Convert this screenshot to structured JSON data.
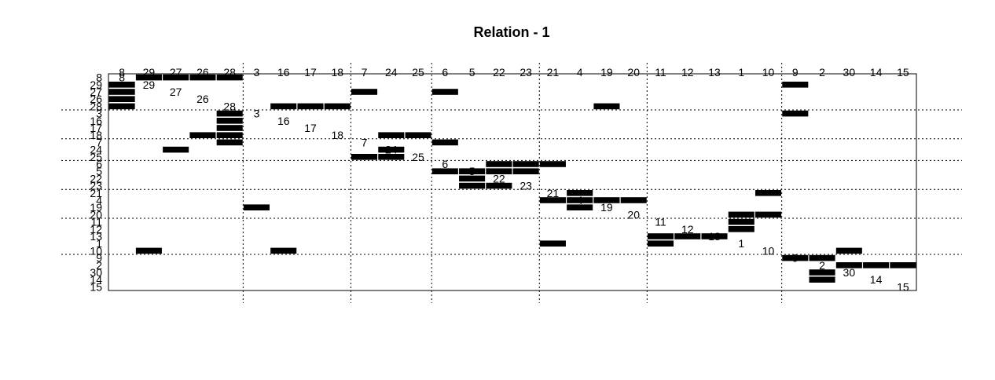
{
  "chart_data": {
    "type": "heatmap",
    "title": "Relation -  1",
    "column_labels": [
      "8",
      "29",
      "27",
      "26",
      "28",
      "3",
      "16",
      "17",
      "18",
      "7",
      "24",
      "25",
      "6",
      "5",
      "22",
      "23",
      "21",
      "4",
      "19",
      "20",
      "11",
      "12",
      "13",
      "1",
      "10",
      "9",
      "2",
      "30",
      "14",
      "15"
    ],
    "row_labels": [
      "8",
      "29",
      "27",
      "26",
      "28",
      "3",
      "16",
      "17",
      "18",
      "7",
      "24",
      "25",
      "6",
      "5",
      "22",
      "23",
      "21",
      "4",
      "19",
      "20",
      "11",
      "12",
      "13",
      "1",
      "10",
      "9",
      "2",
      "30",
      "14",
      "15"
    ],
    "diagonal_labels": [
      "8",
      "29",
      "27",
      "26",
      "28",
      "3",
      "16",
      "17",
      "18",
      "7",
      "24",
      "25",
      "6",
      "5",
      "22",
      "23",
      "21",
      "4",
      "19",
      "20",
      "11",
      "12",
      "13",
      "1",
      "10",
      "9",
      "2",
      "30",
      "14",
      "15"
    ],
    "cluster_boundaries_after": [
      5,
      9,
      12,
      16,
      20,
      25
    ],
    "ties": [
      [
        0,
        1
      ],
      [
        0,
        2
      ],
      [
        0,
        3
      ],
      [
        0,
        4
      ],
      [
        1,
        0
      ],
      [
        2,
        0
      ],
      [
        3,
        0
      ],
      [
        4,
        0
      ],
      [
        1,
        25
      ],
      [
        2,
        9
      ],
      [
        2,
        12
      ],
      [
        4,
        6
      ],
      [
        4,
        7
      ],
      [
        4,
        8
      ],
      [
        4,
        18
      ],
      [
        5,
        4
      ],
      [
        5,
        25
      ],
      [
        6,
        4
      ],
      [
        7,
        4
      ],
      [
        8,
        4
      ],
      [
        8,
        3
      ],
      [
        8,
        10
      ],
      [
        8,
        11
      ],
      [
        9,
        4
      ],
      [
        9,
        12
      ],
      [
        10,
        2
      ],
      [
        10,
        10
      ],
      [
        11,
        9
      ],
      [
        11,
        10
      ],
      [
        12,
        14
      ],
      [
        12,
        15
      ],
      [
        12,
        16
      ],
      [
        13,
        12
      ],
      [
        13,
        13
      ],
      [
        13,
        14
      ],
      [
        13,
        15
      ],
      [
        14,
        13
      ],
      [
        15,
        13
      ],
      [
        15,
        14
      ],
      [
        16,
        17
      ],
      [
        16,
        24
      ],
      [
        17,
        16
      ],
      [
        17,
        17
      ],
      [
        17,
        18
      ],
      [
        17,
        19
      ],
      [
        18,
        5
      ],
      [
        18,
        17
      ],
      [
        19,
        23
      ],
      [
        19,
        24
      ],
      [
        20,
        23
      ],
      [
        21,
        23
      ],
      [
        22,
        20
      ],
      [
        22,
        21
      ],
      [
        22,
        22
      ],
      [
        23,
        16
      ],
      [
        23,
        20
      ],
      [
        24,
        1
      ],
      [
        24,
        6
      ],
      [
        24,
        27
      ],
      [
        25,
        25
      ],
      [
        25,
        26
      ],
      [
        26,
        27
      ],
      [
        26,
        28
      ],
      [
        26,
        29
      ],
      [
        27,
        26
      ],
      [
        28,
        26
      ]
    ]
  }
}
